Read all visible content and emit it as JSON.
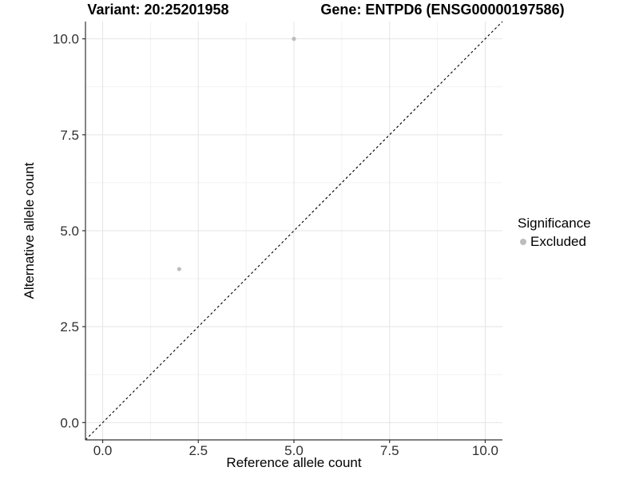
{
  "titles": {
    "variant": "Variant: 20:25201958",
    "gene": "Gene: ENTPD6 (ENSG00000197586)"
  },
  "legend": {
    "title": "Significance",
    "items": [
      {
        "label": "Excluded",
        "color": "#bdbdbd"
      }
    ]
  },
  "chart_data": {
    "type": "scatter",
    "title_left": "Variant: 20:25201958",
    "title_right": "Gene: ENTPD6 (ENSG00000197586)",
    "xlabel": "Reference allele count",
    "ylabel": "Alternative allele count",
    "xlim": [
      0,
      10
    ],
    "ylim": [
      0,
      10
    ],
    "axis_expansion": 0.45,
    "x_ticks": [
      0,
      2.5,
      5,
      7.5,
      10
    ],
    "x_tick_labels": [
      "0.0",
      "2.5",
      "5.0",
      "7.5",
      "10.0"
    ],
    "y_ticks": [
      0,
      2.5,
      5,
      7.5,
      10
    ],
    "y_tick_labels": [
      "0.0",
      "2.5",
      "5.0",
      "7.5",
      "10.0"
    ],
    "minor_ticks": [
      1.25,
      3.75,
      6.25,
      8.75
    ],
    "grid": {
      "major_color": "#e4e4e4",
      "minor_color": "#f2f2f2"
    },
    "axis_color": "#333333",
    "tick_label_color": "#303030",
    "identity_line": {
      "from": "corner-to-corner",
      "style": "dashed",
      "color": "#000000"
    },
    "series": [
      {
        "name": "Excluded",
        "color": "#bdbdbd",
        "points": [
          {
            "x": 5,
            "y": 10
          },
          {
            "x": 2,
            "y": 4
          }
        ]
      }
    ],
    "legend_title": "Significance",
    "legend_position": "right"
  }
}
